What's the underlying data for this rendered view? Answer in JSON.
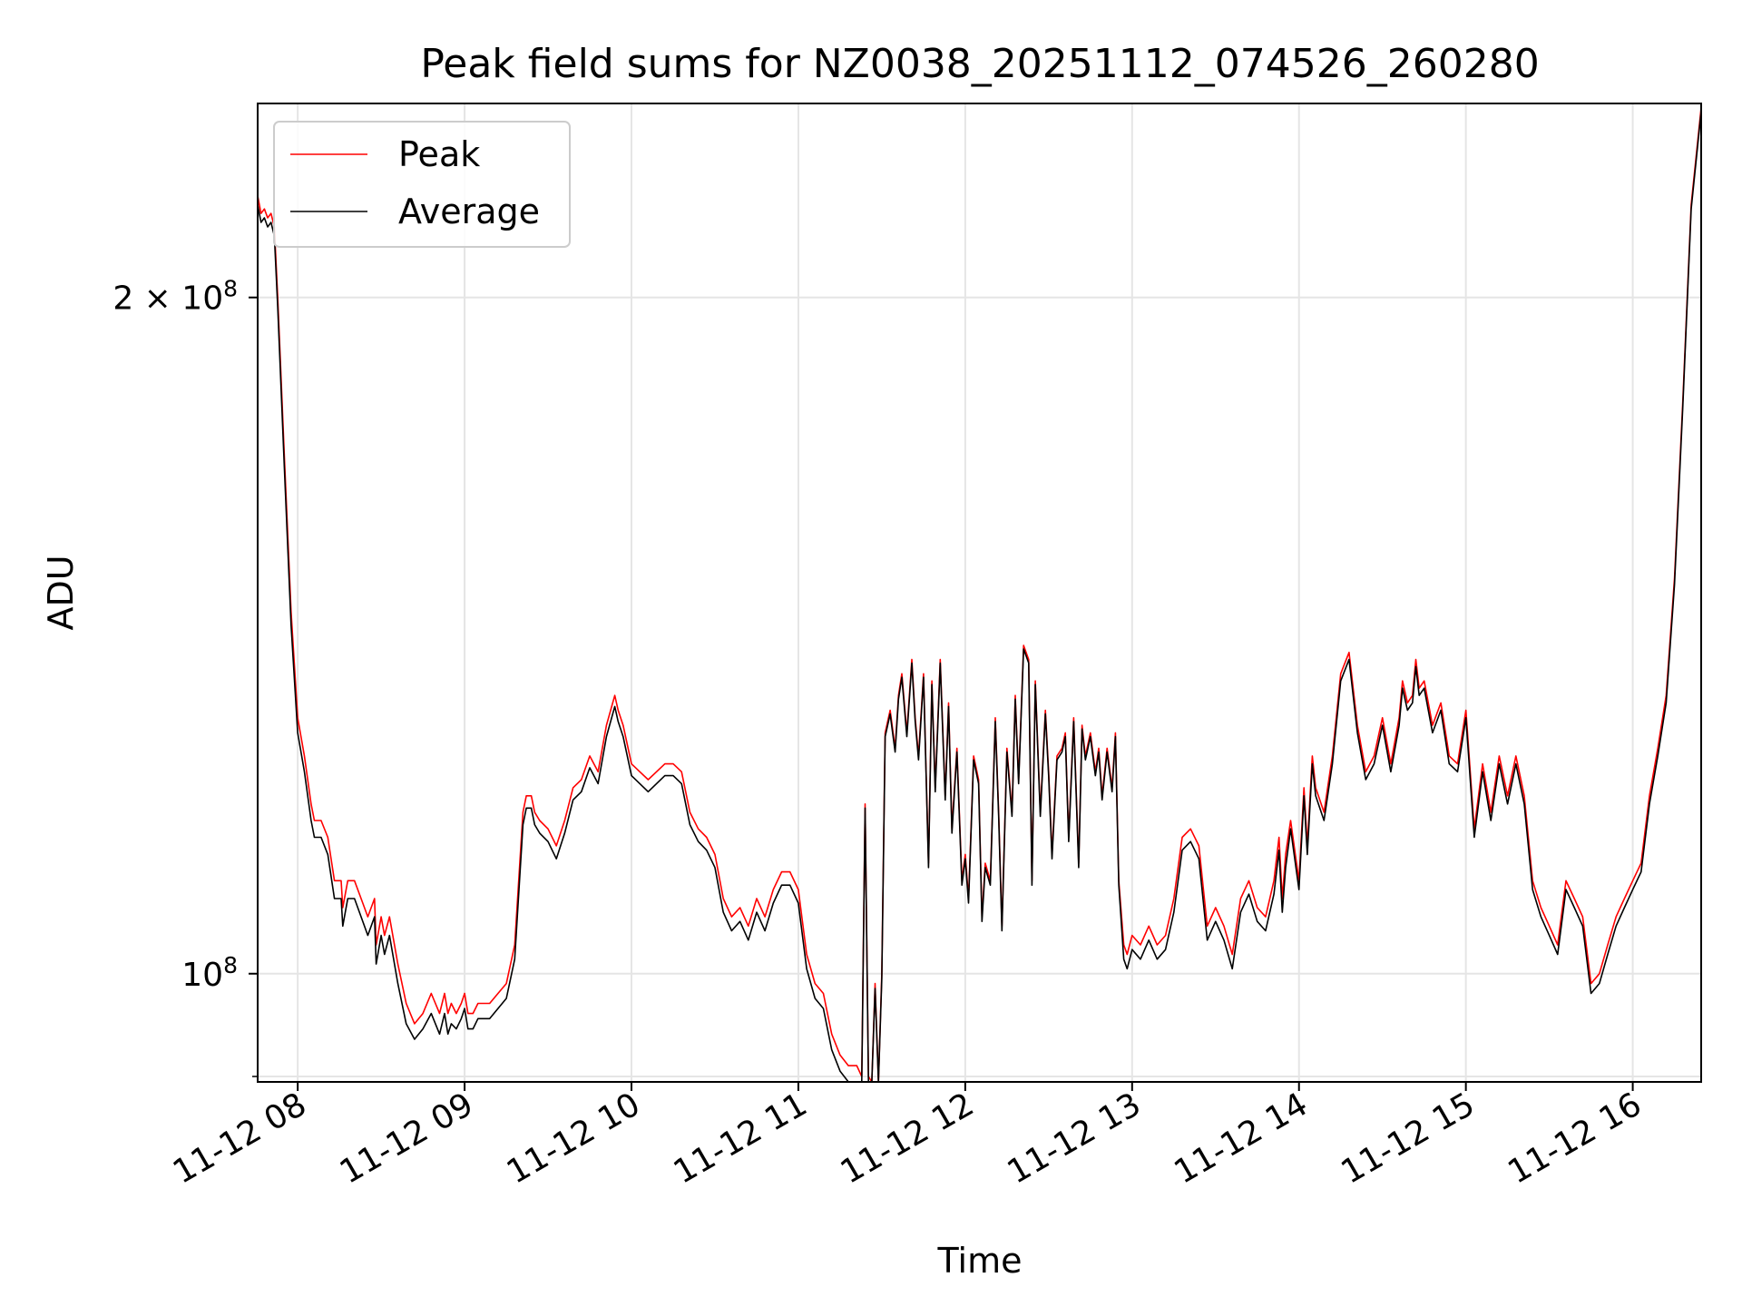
{
  "chart_data": {
    "type": "line",
    "title": "Peak field sums for NZ0038_20251112_074526_260280",
    "xlabel": "Time",
    "ylabel": "ADU",
    "y_scale": "log",
    "xlim": [
      7.76,
      16.41
    ],
    "ylim": [
      89500000,
      244000000
    ],
    "grid": true,
    "legend": {
      "position": "top-left",
      "entries": [
        "Peak",
        "Average"
      ]
    },
    "colors": {
      "Peak": "#ff0000",
      "Average": "#000000",
      "grid": "#e5e5e5"
    },
    "x_ticks": [
      {
        "value": 8,
        "label": "11-12 08"
      },
      {
        "value": 9,
        "label": "11-12 09"
      },
      {
        "value": 10,
        "label": "11-12 10"
      },
      {
        "value": 11,
        "label": "11-12 11"
      },
      {
        "value": 12,
        "label": "11-12 12"
      },
      {
        "value": 13,
        "label": "11-12 13"
      },
      {
        "value": 14,
        "label": "11-12 14"
      },
      {
        "value": 15,
        "label": "11-12 15"
      },
      {
        "value": 16,
        "label": "11-12 16"
      }
    ],
    "y_ticks": [
      {
        "value": 100000000,
        "base": "10",
        "exp": "8"
      },
      {
        "value": 200000000,
        "base": "2 × 10",
        "exp": "8"
      }
    ],
    "y_minor_ticks": [
      90000000
    ],
    "series": [
      {
        "name": "Peak",
        "x": [
          7.76,
          7.78,
          7.8,
          7.82,
          7.84,
          7.86,
          7.88,
          7.92,
          7.96,
          8.0,
          8.04,
          8.08,
          8.1,
          8.14,
          8.18,
          8.22,
          8.26,
          8.27,
          8.3,
          8.34,
          8.38,
          8.42,
          8.46,
          8.47,
          8.5,
          8.52,
          8.55,
          8.6,
          8.65,
          8.7,
          8.75,
          8.8,
          8.85,
          8.88,
          8.9,
          8.92,
          8.95,
          8.98,
          9.0,
          9.02,
          9.05,
          9.08,
          9.1,
          9.15,
          9.2,
          9.25,
          9.3,
          9.35,
          9.37,
          9.4,
          9.42,
          9.45,
          9.5,
          9.55,
          9.6,
          9.65,
          9.7,
          9.75,
          9.8,
          9.85,
          9.9,
          9.92,
          9.95,
          10.0,
          10.05,
          10.1,
          10.15,
          10.2,
          10.25,
          10.3,
          10.35,
          10.4,
          10.45,
          10.5,
          10.55,
          10.6,
          10.65,
          10.7,
          10.75,
          10.8,
          10.85,
          10.9,
          10.95,
          11.0,
          11.05,
          11.1,
          11.15,
          11.2,
          11.25,
          11.3,
          11.35,
          11.38,
          11.4,
          11.42,
          11.44,
          11.46,
          11.48,
          11.5,
          11.52,
          11.55,
          11.58,
          11.6,
          11.62,
          11.65,
          11.68,
          11.7,
          11.72,
          11.75,
          11.78,
          11.8,
          11.82,
          11.85,
          11.88,
          11.9,
          11.92,
          11.95,
          11.98,
          12.0,
          12.02,
          12.05,
          12.08,
          12.1,
          12.12,
          12.15,
          12.18,
          12.2,
          12.22,
          12.25,
          12.28,
          12.3,
          12.32,
          12.35,
          12.38,
          12.4,
          12.42,
          12.45,
          12.48,
          12.5,
          12.52,
          12.55,
          12.58,
          12.6,
          12.62,
          12.65,
          12.68,
          12.7,
          12.72,
          12.75,
          12.78,
          12.8,
          12.82,
          12.85,
          12.88,
          12.9,
          12.92,
          12.95,
          12.97,
          13.0,
          13.05,
          13.1,
          13.15,
          13.2,
          13.25,
          13.3,
          13.35,
          13.4,
          13.45,
          13.5,
          13.55,
          13.6,
          13.65,
          13.7,
          13.75,
          13.8,
          13.85,
          13.88,
          13.9,
          13.92,
          13.95,
          14.0,
          14.03,
          14.05,
          14.08,
          14.1,
          14.15,
          14.2,
          14.25,
          14.3,
          14.35,
          14.4,
          14.45,
          14.5,
          14.55,
          14.6,
          14.62,
          14.65,
          14.68,
          14.7,
          14.72,
          14.75,
          14.8,
          14.85,
          14.9,
          14.95,
          15.0,
          15.05,
          15.1,
          15.15,
          15.2,
          15.25,
          15.3,
          15.35,
          15.4,
          15.45,
          15.5,
          15.55,
          15.6,
          15.65,
          15.7,
          15.75,
          15.8,
          15.85,
          15.9,
          15.95,
          16.0,
          16.05,
          16.1,
          16.15,
          16.2,
          16.25,
          16.3,
          16.35,
          16.41
        ],
        "values": [
          222000000,
          218000000,
          219000000,
          217000000,
          218000000,
          215000000,
          200000000,
          170000000,
          145000000,
          130000000,
          125000000,
          119000000,
          117000000,
          117000000,
          115000000,
          110000000,
          110000000,
          107000000,
          110000000,
          110000000,
          108000000,
          106000000,
          108000000,
          103000000,
          106000000,
          104000000,
          106000000,
          101000000,
          97000000,
          95000000,
          96000000,
          98000000,
          96000000,
          98000000,
          96000000,
          97000000,
          96000000,
          97000000,
          98000000,
          96000000,
          96000000,
          97000000,
          97000000,
          97000000,
          98000000,
          99000000,
          103000000,
          118000000,
          120000000,
          120000000,
          118000000,
          117000000,
          116000000,
          114000000,
          117000000,
          121000000,
          122000000,
          125000000,
          123000000,
          129000000,
          133000000,
          131000000,
          129000000,
          124000000,
          123000000,
          122000000,
          123000000,
          124000000,
          124000000,
          123000000,
          118000000,
          116000000,
          115000000,
          113000000,
          108000000,
          106000000,
          107000000,
          105000000,
          108000000,
          106000000,
          109000000,
          111000000,
          111000000,
          109000000,
          102000000,
          99000000,
          98000000,
          94000000,
          92000000,
          91000000,
          91000000,
          90000000,
          119000000,
          90000000,
          89500000,
          99000000,
          89500000,
          100000000,
          128000000,
          131000000,
          126000000,
          133000000,
          136000000,
          128000000,
          138000000,
          130000000,
          125000000,
          136000000,
          112000000,
          135000000,
          121000000,
          138000000,
          120000000,
          132000000,
          116000000,
          126000000,
          110000000,
          113000000,
          108000000,
          125000000,
          122000000,
          106000000,
          112000000,
          110000000,
          130000000,
          118000000,
          105000000,
          126000000,
          118000000,
          133000000,
          122000000,
          140000000,
          138000000,
          110000000,
          135000000,
          118000000,
          131000000,
          123000000,
          113000000,
          125000000,
          126000000,
          128000000,
          115000000,
          130000000,
          112000000,
          129000000,
          125000000,
          128000000,
          123000000,
          126000000,
          120000000,
          126000000,
          121000000,
          128000000,
          110000000,
          103000000,
          102000000,
          104000000,
          103000000,
          105000000,
          103000000,
          104000000,
          108000000,
          115000000,
          116000000,
          114000000,
          105000000,
          107000000,
          105000000,
          102000000,
          108000000,
          110000000,
          107000000,
          106000000,
          110000000,
          115000000,
          108000000,
          113000000,
          117000000,
          110000000,
          121000000,
          114000000,
          125000000,
          121000000,
          118000000,
          125000000,
          136000000,
          139000000,
          129000000,
          123000000,
          125000000,
          130000000,
          124000000,
          130000000,
          135000000,
          132000000,
          133000000,
          138000000,
          134000000,
          135000000,
          129000000,
          132000000,
          125000000,
          124000000,
          131000000,
          116000000,
          124000000,
          118000000,
          125000000,
          120000000,
          125000000,
          120000000,
          110000000,
          107000000,
          105000000,
          103000000,
          110000000,
          108000000,
          106000000,
          99000000,
          100000000,
          103000000,
          106000000,
          108000000,
          110000000,
          112000000,
          120000000,
          126000000,
          133000000,
          150000000,
          180000000,
          220000000,
          243000000
        ]
      },
      {
        "name": "Average",
        "x": [
          7.76,
          7.78,
          7.8,
          7.82,
          7.84,
          7.86,
          7.88,
          7.92,
          7.96,
          8.0,
          8.04,
          8.08,
          8.1,
          8.14,
          8.18,
          8.22,
          8.26,
          8.27,
          8.3,
          8.34,
          8.38,
          8.42,
          8.46,
          8.47,
          8.5,
          8.52,
          8.55,
          8.6,
          8.65,
          8.7,
          8.75,
          8.8,
          8.85,
          8.88,
          8.9,
          8.92,
          8.95,
          8.98,
          9.0,
          9.02,
          9.05,
          9.08,
          9.1,
          9.15,
          9.2,
          9.25,
          9.3,
          9.35,
          9.37,
          9.4,
          9.42,
          9.45,
          9.5,
          9.55,
          9.6,
          9.65,
          9.7,
          9.75,
          9.8,
          9.85,
          9.9,
          9.92,
          9.95,
          10.0,
          10.05,
          10.1,
          10.15,
          10.2,
          10.25,
          10.3,
          10.35,
          10.4,
          10.45,
          10.5,
          10.55,
          10.6,
          10.65,
          10.7,
          10.75,
          10.8,
          10.85,
          10.9,
          10.95,
          11.0,
          11.05,
          11.1,
          11.15,
          11.2,
          11.25,
          11.3,
          11.35,
          11.38,
          11.4,
          11.42,
          11.44,
          11.46,
          11.48,
          11.5,
          11.52,
          11.55,
          11.58,
          11.6,
          11.62,
          11.65,
          11.68,
          11.7,
          11.72,
          11.75,
          11.78,
          11.8,
          11.82,
          11.85,
          11.88,
          11.9,
          11.92,
          11.95,
          11.98,
          12.0,
          12.02,
          12.05,
          12.08,
          12.1,
          12.12,
          12.15,
          12.18,
          12.2,
          12.22,
          12.25,
          12.28,
          12.3,
          12.32,
          12.35,
          12.38,
          12.4,
          12.42,
          12.45,
          12.48,
          12.5,
          12.52,
          12.55,
          12.58,
          12.6,
          12.62,
          12.65,
          12.68,
          12.7,
          12.72,
          12.75,
          12.78,
          12.8,
          12.82,
          12.85,
          12.88,
          12.9,
          12.92,
          12.95,
          12.97,
          13.0,
          13.05,
          13.1,
          13.15,
          13.2,
          13.25,
          13.3,
          13.35,
          13.4,
          13.45,
          13.5,
          13.55,
          13.6,
          13.65,
          13.7,
          13.75,
          13.8,
          13.85,
          13.88,
          13.9,
          13.92,
          13.95,
          14.0,
          14.03,
          14.05,
          14.08,
          14.1,
          14.15,
          14.2,
          14.25,
          14.3,
          14.35,
          14.4,
          14.45,
          14.5,
          14.55,
          14.6,
          14.62,
          14.65,
          14.68,
          14.7,
          14.72,
          14.75,
          14.8,
          14.85,
          14.9,
          14.95,
          15.0,
          15.05,
          15.1,
          15.15,
          15.2,
          15.25,
          15.3,
          15.35,
          15.4,
          15.45,
          15.5,
          15.55,
          15.6,
          15.65,
          15.7,
          15.75,
          15.8,
          15.85,
          15.9,
          15.95,
          16.0,
          16.05,
          16.1,
          16.15,
          16.2,
          16.25,
          16.3,
          16.35,
          16.41
        ],
        "values": [
          220000000,
          216000000,
          217000000,
          215000000,
          216000000,
          213000000,
          198000000,
          168000000,
          143000000,
          128000000,
          123000000,
          117000000,
          115000000,
          115000000,
          113000000,
          108000000,
          108000000,
          105000000,
          108000000,
          108000000,
          106000000,
          104000000,
          106000000,
          101000000,
          104000000,
          102000000,
          104000000,
          99000000,
          95000000,
          93500000,
          94500000,
          96000000,
          94000000,
          96000000,
          94000000,
          95000000,
          94500000,
          95500000,
          96500000,
          94500000,
          94500000,
          95500000,
          95500000,
          95500000,
          96500000,
          97500000,
          101500000,
          116500000,
          118500000,
          118500000,
          116500000,
          115500000,
          114500000,
          112500000,
          115500000,
          119500000,
          120500000,
          123500000,
          121500000,
          127500000,
          131500000,
          129500000,
          127500000,
          122500000,
          121500000,
          120500000,
          121500000,
          122500000,
          122500000,
          121500000,
          116500000,
          114500000,
          113500000,
          111500000,
          106500000,
          104500000,
          105500000,
          103500000,
          106500000,
          104500000,
          107500000,
          109500000,
          109500000,
          107500000,
          100500000,
          97500000,
          96500000,
          92500000,
          90500000,
          89500000,
          89500000,
          89500000,
          118500000,
          89500000,
          89500000,
          98500000,
          89500000,
          99500000,
          127500000,
          130500000,
          125500000,
          132500000,
          135500000,
          127500000,
          137500000,
          129500000,
          124500000,
          135500000,
          111500000,
          134500000,
          120500000,
          137500000,
          119500000,
          131500000,
          115500000,
          125500000,
          109500000,
          112500000,
          107500000,
          124500000,
          121500000,
          105500000,
          111500000,
          109500000,
          129500000,
          117500000,
          104500000,
          125500000,
          117500000,
          132500000,
          121500000,
          139500000,
          137500000,
          109500000,
          134500000,
          117500000,
          130500000,
          122500000,
          112500000,
          124500000,
          125500000,
          127500000,
          114500000,
          129500000,
          111500000,
          128500000,
          124500000,
          127500000,
          122500000,
          125500000,
          119500000,
          125500000,
          120500000,
          127500000,
          109500000,
          101500000,
          100500000,
          102500000,
          101500000,
          103500000,
          101500000,
          102500000,
          106500000,
          113500000,
          114500000,
          112500000,
          103500000,
          105500000,
          103500000,
          100500000,
          106500000,
          108500000,
          105500000,
          104500000,
          108500000,
          113500000,
          106500000,
          111500000,
          116000000,
          109000000,
          120000000,
          113000000,
          124000000,
          120000000,
          117000000,
          124000000,
          135000000,
          138000000,
          128000000,
          122000000,
          124000000,
          129000000,
          123000000,
          129000000,
          134000000,
          131000000,
          132000000,
          137000000,
          133000000,
          134000000,
          128000000,
          131000000,
          124000000,
          123000000,
          130000000,
          115000000,
          123000000,
          117000000,
          124000000,
          119000000,
          124000000,
          119000000,
          109000000,
          106000000,
          104000000,
          102000000,
          109000000,
          107000000,
          105000000,
          98000000,
          99000000,
          102000000,
          105000000,
          107000000,
          109000000,
          111000000,
          119000000,
          125000000,
          132000000,
          149000000,
          179000000,
          219000000,
          242000000
        ]
      }
    ]
  }
}
